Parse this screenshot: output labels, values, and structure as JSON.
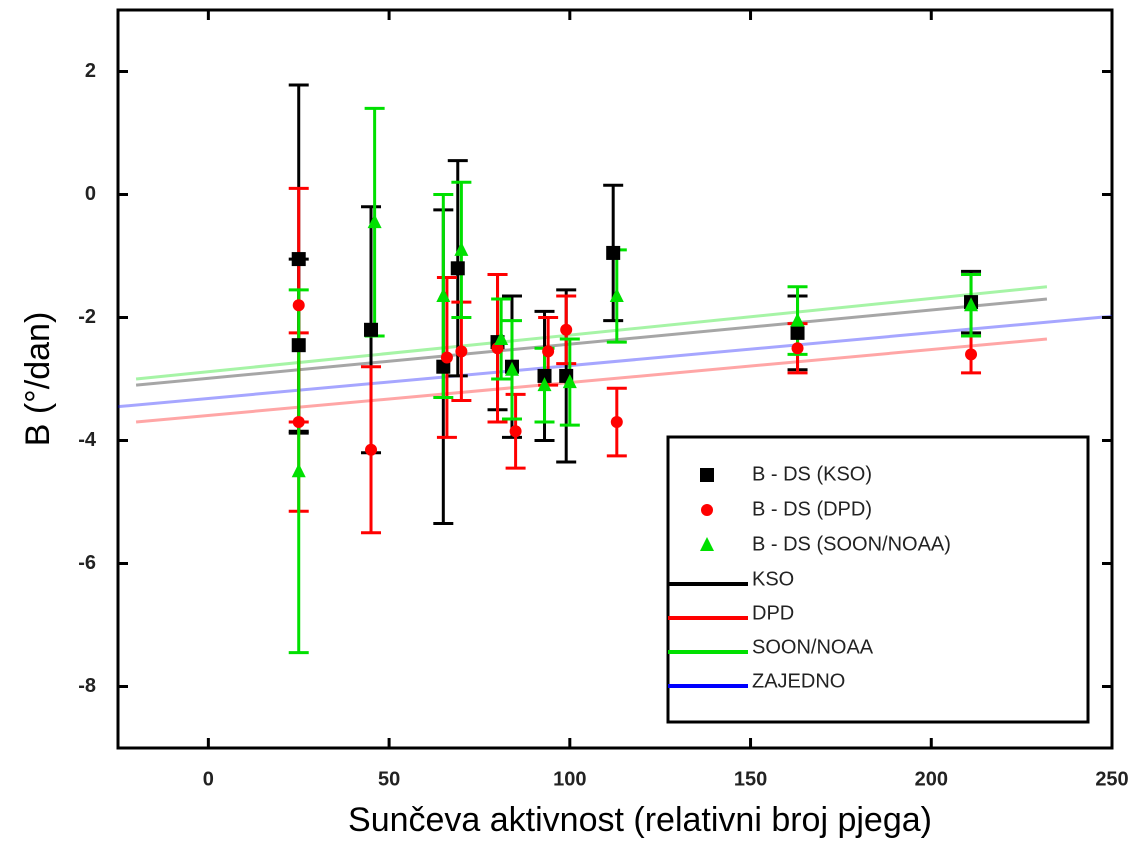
{
  "chart_data": {
    "type": "scatter",
    "x_label": "Sunčeva aktivnost (relativni broj pjega)",
    "y_label": "B (°/dan)",
    "xlim": [
      -25,
      250
    ],
    "ylim": [
      -9,
      3
    ],
    "xticks": [
      0,
      50,
      100,
      150,
      200,
      250
    ],
    "yticks": [
      2,
      0,
      -2,
      -4,
      -6,
      -8
    ],
    "series": [
      {
        "name": "B - DS (KSO)",
        "color": "#000000",
        "marker": "square",
        "x": [
          25,
          25,
          45,
          65,
          69,
          80,
          84,
          93,
          99,
          112,
          163,
          211
        ],
        "values": [
          -1.05,
          -2.45,
          -2.2,
          -2.8,
          -1.2,
          -2.4,
          -2.8,
          -2.95,
          -2.95,
          -0.95,
          -2.25,
          -1.75
        ],
        "errors": [
          2.83,
          1.4,
          2.0,
          2.55,
          1.75,
          1.1,
          1.15,
          1.05,
          1.4,
          1.1,
          0.6,
          0.5
        ]
      },
      {
        "name": "B - DS (DPD)",
        "color": "#ff0000",
        "marker": "circle",
        "x": [
          25,
          25,
          45,
          66,
          70,
          80,
          85,
          94,
          99,
          113,
          163,
          211
        ],
        "values": [
          -1.8,
          -3.7,
          -4.15,
          -2.65,
          -2.55,
          -2.5,
          -3.85,
          -2.55,
          -2.2,
          -3.7,
          -2.5,
          -2.6
        ],
        "errors": [
          1.9,
          1.45,
          1.35,
          1.3,
          0.8,
          1.2,
          0.6,
          0.55,
          0.55,
          0.55,
          0.4,
          0.3
        ]
      },
      {
        "name": "B - DS (SOON/NOAA)",
        "color": "#00e000",
        "marker": "triangle",
        "x": [
          25,
          46,
          65,
          70,
          81,
          84,
          93,
          100,
          113,
          163,
          211
        ],
        "values": [
          -4.5,
          -0.45,
          -1.65,
          -0.9,
          -2.35,
          -2.85,
          -3.1,
          -3.05,
          -1.65,
          -2.05,
          -1.8
        ],
        "errors": [
          2.95,
          1.85,
          1.65,
          1.1,
          0.65,
          0.8,
          0.6,
          0.7,
          0.75,
          0.55,
          0.5
        ]
      }
    ],
    "lines": [
      {
        "name": "KSO",
        "color": "#000000",
        "x": [
          -20,
          232
        ],
        "values": [
          -3.1,
          -1.7
        ]
      },
      {
        "name": "DPD",
        "color": "#ff0000",
        "x": [
          -20,
          232
        ],
        "values": [
          -3.7,
          -2.35
        ]
      },
      {
        "name": "SOON/NOAA",
        "color": "#00e000",
        "x": [
          -20,
          232
        ],
        "values": [
          -3.0,
          -1.5
        ]
      },
      {
        "name": "ZAJEDNO",
        "color": "#0000ff",
        "x": [
          -25,
          250
        ],
        "values": [
          -3.45,
          -1.98
        ]
      }
    ]
  }
}
